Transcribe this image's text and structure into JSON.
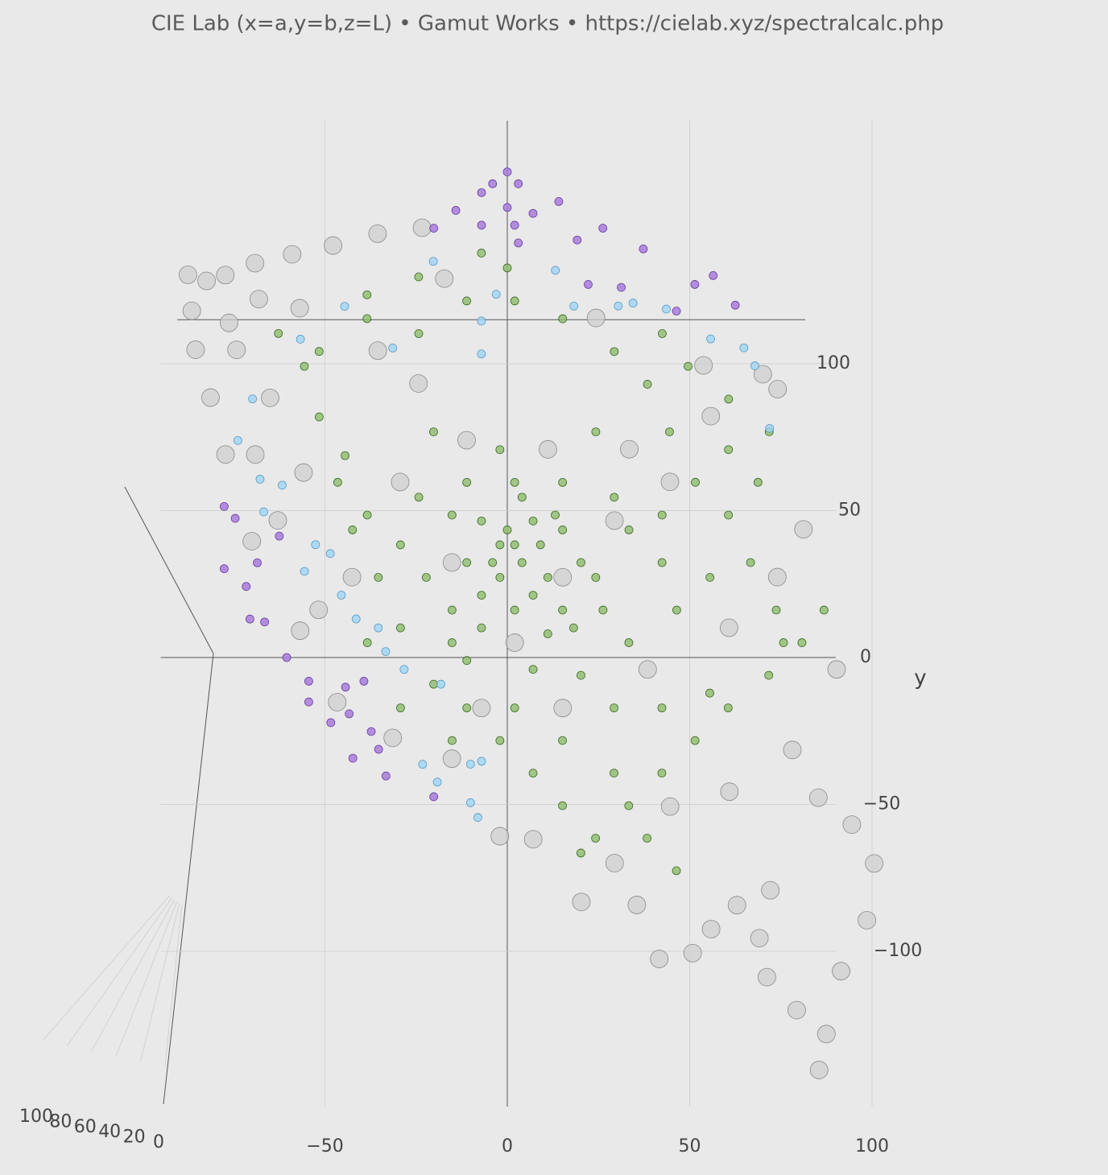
{
  "chart_data": {
    "type": "scatter3d",
    "title": "CIE Lab (x=a,y=b,z=L)  •  Gamut Works  •  https://cielab.xyz/spectralcalc.php",
    "ylabel": "y",
    "xlim": [
      -95,
      100
    ],
    "ylim": [
      -140,
      115
    ],
    "zlim": [
      0,
      100
    ],
    "xticks": [
      {
        "value": -50,
        "label": "−50"
      },
      0,
      50,
      100
    ],
    "yticks": [
      {
        "value": -100,
        "label": "−100"
      },
      {
        "value": -50,
        "label": "−50"
      },
      0,
      50,
      100
    ],
    "zticks": [
      0,
      20,
      40,
      60,
      80,
      100
    ],
    "grid": true,
    "series": [
      {
        "color": "#cfcfcf",
        "x": [
          -86,
          -81,
          -76,
          -68,
          -58,
          -47,
          -35,
          -23,
          -17,
          -85,
          -75,
          -67,
          -56,
          -84,
          -73,
          -80,
          -64,
          -76,
          -68,
          -55,
          -69,
          -62,
          -56,
          -51,
          -42,
          -46,
          -31,
          -15,
          -2,
          7,
          20,
          29,
          35,
          41,
          50,
          55,
          62,
          68,
          70,
          78,
          84,
          86,
          90,
          97,
          99,
          93,
          84,
          77,
          89,
          80,
          73,
          69,
          53,
          24,
          55,
          44,
          29,
          15,
          2,
          -11,
          -24,
          -35,
          -7,
          15,
          38,
          60,
          73,
          44,
          60,
          71,
          -15,
          11,
          33,
          -29
        ],
        "y": [
          128,
          126,
          128,
          132,
          135,
          138,
          142,
          144,
          127,
          116,
          112,
          120,
          117,
          103,
          103,
          87,
          87,
          68,
          68,
          62,
          39,
          46,
          9,
          16,
          27,
          -15,
          -27,
          -34,
          -60,
          -61,
          -82,
          -69,
          -83,
          -101,
          -99,
          -91,
          -83,
          -94,
          -107,
          -118,
          -138,
          -126,
          -105,
          -88,
          -69,
          -56,
          -47,
          -31,
          -4,
          43,
          90,
          95,
          98,
          114,
          81,
          59,
          46,
          27,
          5,
          73,
          92,
          103,
          -17,
          -17,
          -4,
          10,
          27,
          -50,
          -45,
          -78,
          32,
          70,
          70,
          59
        ],
        "z": [
          90,
          88,
          86,
          85,
          84,
          82,
          80,
          80,
          78,
          88,
          86,
          84,
          82,
          86,
          84,
          85,
          80,
          82,
          80,
          78,
          76,
          74,
          70,
          70,
          68,
          68,
          66,
          64,
          70,
          72,
          74,
          72,
          74,
          80,
          82,
          80,
          78,
          82,
          84,
          86,
          88,
          86,
          84,
          82,
          80,
          78,
          76,
          74,
          72,
          74,
          76,
          76,
          74,
          70,
          72,
          68,
          66,
          60,
          55,
          66,
          70,
          72,
          58,
          60,
          62,
          66,
          70,
          72,
          74,
          78,
          56,
          62,
          66,
          64
        ]
      },
      {
        "color": "#8dbb6a",
        "x": [
          2,
          4,
          -2,
          7,
          -7,
          15,
          -11,
          20,
          2,
          -7,
          11,
          -15,
          26,
          2,
          15,
          -11,
          -2,
          24,
          -20,
          -29,
          -35,
          -38,
          -44,
          -51,
          -55,
          -62,
          -38,
          -24,
          -11,
          2,
          15,
          29,
          38,
          44,
          51,
          60,
          66,
          73,
          80,
          71,
          60,
          51,
          42,
          33,
          24,
          15,
          7,
          -2,
          -11,
          -20,
          -29,
          -15,
          2,
          15,
          29,
          42,
          55,
          20,
          33,
          46,
          55,
          42,
          33,
          29,
          42,
          60,
          68,
          71,
          60,
          49,
          42,
          -7,
          0,
          -24,
          -38,
          -51,
          -46,
          -42,
          -24,
          -15,
          -22,
          -29,
          -38,
          -11,
          7,
          15,
          24,
          11,
          -4,
          9,
          0,
          13,
          4,
          -2,
          -7,
          7,
          18,
          -15,
          29,
          20,
          38,
          46,
          86,
          75
        ],
        "y": [
          38,
          32,
          27,
          46,
          46,
          43,
          32,
          32,
          16,
          10,
          8,
          16,
          16,
          59,
          59,
          59,
          70,
          76,
          76,
          38,
          27,
          48,
          68,
          81,
          98,
          109,
          114,
          109,
          120,
          120,
          114,
          103,
          92,
          76,
          59,
          48,
          32,
          16,
          5,
          -6,
          -17,
          -28,
          -39,
          -50,
          -61,
          -50,
          -39,
          -28,
          -17,
          -9,
          -17,
          -28,
          -17,
          -28,
          -17,
          -17,
          -12,
          -6,
          5,
          16,
          27,
          32,
          43,
          54,
          48,
          70,
          59,
          76,
          87,
          98,
          109,
          136,
          131,
          128,
          122,
          103,
          59,
          43,
          54,
          48,
          27,
          10,
          5,
          -1,
          -4,
          16,
          27,
          27,
          32,
          38,
          43,
          48,
          54,
          38,
          21,
          21,
          10,
          5,
          -39,
          -66,
          -61,
          -72,
          16,
          5
        ],
        "z": [
          50,
          50,
          50,
          52,
          52,
          52,
          50,
          50,
          48,
          48,
          48,
          48,
          48,
          52,
          52,
          52,
          54,
          54,
          54,
          50,
          50,
          52,
          54,
          56,
          58,
          60,
          60,
          58,
          58,
          58,
          58,
          56,
          56,
          54,
          54,
          52,
          52,
          50,
          48,
          48,
          46,
          46,
          44,
          44,
          42,
          44,
          46,
          46,
          46,
          46,
          46,
          44,
          46,
          44,
          46,
          46,
          46,
          48,
          48,
          48,
          50,
          50,
          52,
          52,
          52,
          54,
          54,
          56,
          56,
          58,
          58,
          62,
          62,
          62,
          60,
          58,
          54,
          52,
          54,
          52,
          50,
          48,
          48,
          48,
          48,
          48,
          50,
          50,
          50,
          50,
          52,
          52,
          52,
          50,
          48,
          48,
          48,
          48,
          44,
          42,
          42,
          40,
          48,
          48
        ]
      },
      {
        "color": "#9fd4f5",
        "x": [
          -73,
          -69,
          -67,
          -61,
          -66,
          -52,
          -48,
          -55,
          -45,
          -41,
          -35,
          -33,
          -28,
          -18,
          -23,
          -19,
          -10,
          -7,
          -10,
          -8,
          -56,
          -44,
          -31,
          -7,
          13,
          18,
          30,
          34,
          43,
          55,
          64,
          71,
          67,
          -20,
          -7,
          -3
        ],
        "y": [
          73,
          87,
          60,
          58,
          49,
          38,
          35,
          29,
          21,
          13,
          10,
          2,
          -4,
          -9,
          -36,
          -42,
          -36,
          -35,
          -49,
          -54,
          107,
          118,
          104,
          102,
          130,
          118,
          118,
          119,
          117,
          107,
          104,
          77,
          98,
          133,
          113,
          122
        ],
        "z": [
          60,
          60,
          58,
          58,
          58,
          56,
          56,
          56,
          54,
          54,
          52,
          52,
          50,
          50,
          48,
          48,
          46,
          46,
          44,
          44,
          64,
          66,
          66,
          66,
          70,
          70,
          70,
          70,
          70,
          68,
          68,
          64,
          66,
          70,
          68,
          68
        ]
      },
      {
        "color": "#a87ddd",
        "x": [
          0,
          -4,
          3,
          -7,
          0,
          14,
          7,
          -14,
          2,
          -20,
          -7,
          3,
          19,
          26,
          37,
          22,
          31,
          51,
          56,
          62,
          46,
          -77,
          -74,
          -68,
          -77,
          -62,
          -71,
          -70,
          -66,
          -60,
          -54,
          -54,
          -48,
          -43,
          -37,
          -35,
          -33,
          -20,
          -42,
          -39,
          -44
        ],
        "y": [
          164,
          160,
          160,
          157,
          152,
          154,
          150,
          151,
          146,
          145,
          146,
          140,
          141,
          145,
          138,
          126,
          125,
          126,
          129,
          119,
          117,
          51,
          47,
          32,
          30,
          41,
          24,
          13,
          12,
          0,
          -8,
          -15,
          -22,
          -19,
          -25,
          -31,
          -40,
          -47,
          -34,
          -8,
          -10
        ],
        "z": [
          40,
          40,
          40,
          40,
          40,
          40,
          40,
          40,
          40,
          40,
          40,
          40,
          40,
          40,
          40,
          40,
          40,
          40,
          40,
          40,
          40,
          40,
          40,
          40,
          40,
          40,
          40,
          40,
          40,
          40,
          40,
          40,
          40,
          40,
          40,
          40,
          40,
          40,
          40,
          40,
          40
        ]
      }
    ]
  }
}
